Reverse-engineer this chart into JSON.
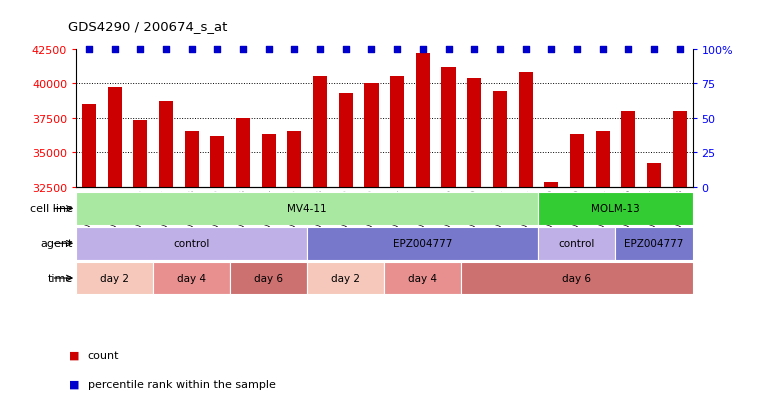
{
  "title": "GDS4290 / 200674_s_at",
  "samples": [
    "GSM739151",
    "GSM739152",
    "GSM739153",
    "GSM739157",
    "GSM739158",
    "GSM739159",
    "GSM739163",
    "GSM739164",
    "GSM739165",
    "GSM739148",
    "GSM739149",
    "GSM739150",
    "GSM739154",
    "GSM739155",
    "GSM739156",
    "GSM739160",
    "GSM739161",
    "GSM739162",
    "GSM739169",
    "GSM739170",
    "GSM739171",
    "GSM739166",
    "GSM739167",
    "GSM739168"
  ],
  "counts": [
    38500,
    39700,
    37300,
    38700,
    36500,
    36200,
    37500,
    36300,
    36500,
    40500,
    39300,
    40000,
    40500,
    42200,
    41200,
    40400,
    39400,
    40800,
    32800,
    36300,
    36500,
    38000,
    34200,
    38000
  ],
  "ylim_left": [
    32500,
    42500
  ],
  "yticks_left": [
    32500,
    35000,
    37500,
    40000,
    42500
  ],
  "yticks_right": [
    0,
    25,
    50,
    75,
    100
  ],
  "bar_color": "#cc0000",
  "dot_color": "#0000cc",
  "background_color": "#ffffff",
  "cell_line_data": [
    {
      "label": "MV4-11",
      "start": 0,
      "end": 18,
      "color": "#a8e8a0"
    },
    {
      "label": "MOLM-13",
      "start": 18,
      "end": 24,
      "color": "#33cc33"
    }
  ],
  "agent_data": [
    {
      "label": "control",
      "start": 0,
      "end": 9,
      "color": "#c0b0e8"
    },
    {
      "label": "EPZ004777",
      "start": 9,
      "end": 18,
      "color": "#7777cc"
    },
    {
      "label": "control",
      "start": 18,
      "end": 21,
      "color": "#c0b0e8"
    },
    {
      "label": "EPZ004777",
      "start": 21,
      "end": 24,
      "color": "#7777cc"
    }
  ],
  "time_data": [
    {
      "label": "day 2",
      "start": 0,
      "end": 3,
      "color": "#f5c8bb"
    },
    {
      "label": "day 4",
      "start": 3,
      "end": 6,
      "color": "#e89090"
    },
    {
      "label": "day 6",
      "start": 6,
      "end": 9,
      "color": "#cc7070"
    },
    {
      "label": "day 2",
      "start": 9,
      "end": 12,
      "color": "#f5c8bb"
    },
    {
      "label": "day 4",
      "start": 12,
      "end": 15,
      "color": "#e89090"
    },
    {
      "label": "day 6",
      "start": 15,
      "end": 24,
      "color": "#cc7070"
    }
  ],
  "row_labels": [
    "cell line",
    "agent",
    "time"
  ],
  "legend_items": [
    {
      "label": "count",
      "color": "#cc0000"
    },
    {
      "label": "percentile rank within the sample",
      "color": "#0000cc"
    }
  ]
}
